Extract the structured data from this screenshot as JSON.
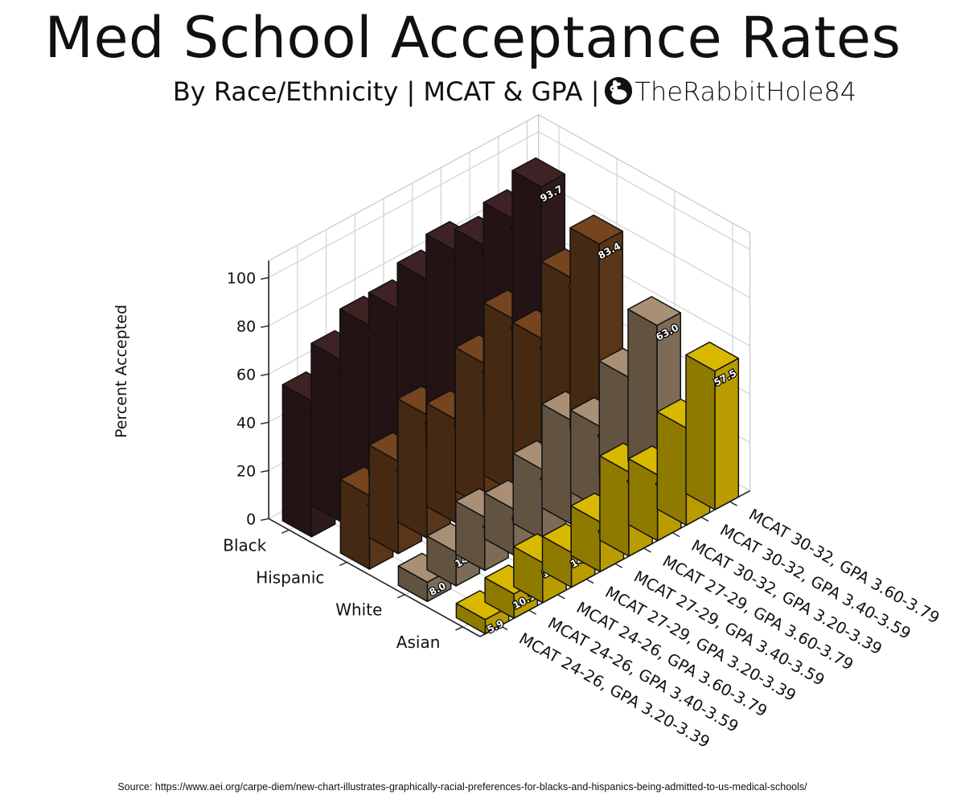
{
  "title": "Med School Acceptance Rates",
  "subtitle": "By Race/Ethnicity | MCAT & GPA |",
  "credit": "TheRabbitHole84",
  "source": "Source: https://www.aei.org/carpe-diem/new-chart-illustrates-graphically-racial-preferences-for-blacks-and-hispanics-being-admitted-to-us-medical-schools/",
  "colors": {
    "Black": {
      "top": "#3f2224",
      "front": "#2e1a1b",
      "side": "#231314"
    },
    "Hispanic": {
      "top": "#75451f",
      "front": "#5a3518",
      "side": "#452913"
    },
    "White": {
      "top": "#a98f74",
      "front": "#7e6b56",
      "side": "#625341"
    },
    "Asian": {
      "top": "#d9b800",
      "front": "#b89c00",
      "side": "#8f7a00"
    }
  },
  "chart_data": {
    "type": "bar3d",
    "zlabel": "Percent Accepted",
    "zticks": [
      0,
      20,
      40,
      60,
      80,
      100
    ],
    "zlim": [
      0,
      100
    ],
    "categories": [
      "MCAT 24-26, GPA 3.20-3.39",
      "MCAT 24-26, GPA 3.40-3.59",
      "MCAT 24-26, GPA 3.60-3.79",
      "MCAT 27-29, GPA 3.20-3.39",
      "MCAT 27-29, GPA 3.40-3.59",
      "MCAT 27-29, GPA 3.60-3.79",
      "MCAT 30-32, GPA 3.20-3.39",
      "MCAT 30-32, GPA 3.40-3.59",
      "MCAT 30-32, GPA 3.60-3.79"
    ],
    "series": [
      {
        "name": "Black",
        "values": [
          56.4,
          67.1,
          74.9,
          75.3,
          81.2,
          86.6,
          82.3,
          86.9,
          93.7
        ]
      },
      {
        "name": "Hispanic",
        "values": [
          30.5,
          38.3,
          51.1,
          42.8,
          59.5,
          71.6,
          57.0,
          75.9,
          83.4
        ]
      },
      {
        "name": "White",
        "values": [
          8.0,
          14.0,
          22.0,
          19.0,
          29.0,
          43.0,
          34.0,
          48.0,
          63.0
        ]
      },
      {
        "name": "Asian",
        "values": [
          5.9,
          10.1,
          16.6,
          14.4,
          20.6,
          34.9,
          27.3,
          40.3,
          57.5
        ]
      }
    ]
  }
}
